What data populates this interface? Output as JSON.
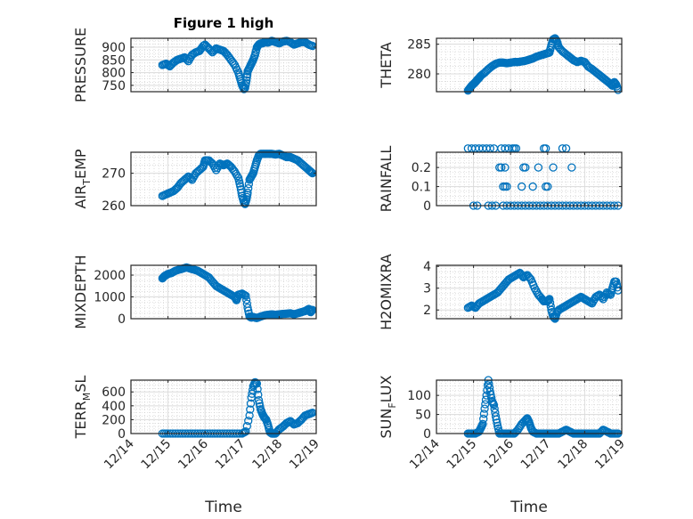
{
  "figure_title": "Figure 1 high",
  "colors": {
    "marker": "#0072bd",
    "axis": "#262626",
    "grid": "#dcdcdc"
  },
  "chart_data": [
    {
      "type": "scatter",
      "title": "Figure 1 high",
      "ylabel": "PRESSURE",
      "xlabel": "",
      "xlim": [
        0,
        5
      ],
      "ylim": [
        725,
        935
      ],
      "yticks": [
        750,
        800,
        850,
        900
      ],
      "ytick_labels": [
        "750",
        "800",
        "850",
        "900"
      ],
      "xticks": [
        0,
        1,
        2,
        3,
        4,
        5
      ],
      "xtick_labels": [],
      "x": [
        0.85,
        0.95,
        1.05,
        1.15,
        1.25,
        1.35,
        1.45,
        1.55,
        1.65,
        1.75,
        1.85,
        1.95,
        2.0,
        2.1,
        2.2,
        2.3,
        2.4,
        2.5,
        2.6,
        2.7,
        2.8,
        2.9,
        2.95,
        3.0,
        3.05,
        3.08,
        3.12,
        3.15,
        3.2,
        3.25,
        3.3,
        3.35,
        3.4,
        3.45,
        3.5,
        3.55,
        3.6,
        3.7,
        3.8,
        3.9,
        4.0,
        4.1,
        4.2,
        4.3,
        4.4,
        4.5,
        4.6,
        4.7,
        4.8,
        4.9
      ],
      "y": [
        830,
        835,
        825,
        840,
        850,
        855,
        860,
        845,
        870,
        880,
        885,
        905,
        910,
        895,
        880,
        895,
        890,
        885,
        870,
        850,
        830,
        800,
        775,
        750,
        735,
        740,
        770,
        805,
        820,
        835,
        850,
        870,
        900,
        910,
        915,
        915,
        920,
        918,
        925,
        920,
        915,
        922,
        925,
        920,
        910,
        915,
        920,
        920,
        910,
        905
      ]
    },
    {
      "type": "scatter",
      "title": "",
      "ylabel": "THETA",
      "xlabel": "",
      "xlim": [
        0,
        5
      ],
      "ylim": [
        277,
        286
      ],
      "yticks": [
        280,
        285
      ],
      "ytick_labels": [
        "280",
        "285"
      ],
      "xticks": [
        0,
        1,
        2,
        3,
        4,
        5
      ],
      "xtick_labels": [],
      "x": [
        0.85,
        0.9,
        0.95,
        1.0,
        1.05,
        1.1,
        1.15,
        1.2,
        1.3,
        1.4,
        1.5,
        1.6,
        1.7,
        1.8,
        1.9,
        2.0,
        2.1,
        2.2,
        2.3,
        2.4,
        2.5,
        2.6,
        2.7,
        2.8,
        2.9,
        3.0,
        3.05,
        3.1,
        3.15,
        3.2,
        3.25,
        3.3,
        3.4,
        3.5,
        3.6,
        3.7,
        3.8,
        3.9,
        4.0,
        4.1,
        4.2,
        4.3,
        4.4,
        4.5,
        4.6,
        4.7,
        4.75,
        4.8,
        4.85,
        4.9
      ],
      "y": [
        277.2,
        277.6,
        278.0,
        278.3,
        278.6,
        279.0,
        279.3,
        279.7,
        280.2,
        280.8,
        281.3,
        281.7,
        281.9,
        281.9,
        281.8,
        281.9,
        282.0,
        282.0,
        282.1,
        282.2,
        282.4,
        282.6,
        282.9,
        283.1,
        283.3,
        283.5,
        283.6,
        284.8,
        285.8,
        286.0,
        285.5,
        284.5,
        283.8,
        283.3,
        282.8,
        282.3,
        282.0,
        282.2,
        282.0,
        281.2,
        280.8,
        280.3,
        279.8,
        279.3,
        278.8,
        278.3,
        278.0,
        278.6,
        278.2,
        277.3
      ]
    },
    {
      "type": "scatter",
      "title": "",
      "ylabel": "AIR_TEMP",
      "xlabel": "",
      "xlim": [
        0,
        5
      ],
      "ylim": [
        260,
        276.5
      ],
      "yticks": [
        260,
        270
      ],
      "ytick_labels": [
        "260",
        "270"
      ],
      "xticks": [
        0,
        1,
        2,
        3,
        4,
        5
      ],
      "xtick_labels": [],
      "x": [
        0.85,
        0.95,
        1.05,
        1.15,
        1.25,
        1.35,
        1.45,
        1.55,
        1.65,
        1.75,
        1.85,
        1.95,
        2.0,
        2.1,
        2.2,
        2.3,
        2.4,
        2.5,
        2.6,
        2.7,
        2.8,
        2.9,
        2.95,
        3.0,
        3.05,
        3.08,
        3.12,
        3.15,
        3.2,
        3.25,
        3.3,
        3.35,
        3.4,
        3.45,
        3.5,
        3.6,
        3.7,
        3.8,
        3.9,
        4.0,
        4.1,
        4.2,
        4.3,
        4.4,
        4.5,
        4.6,
        4.7,
        4.8,
        4.85,
        4.9
      ],
      "y": [
        263,
        263.5,
        264,
        264.5,
        265.5,
        267,
        268,
        269,
        268,
        270,
        271,
        272,
        274,
        274,
        273,
        271,
        273,
        272.5,
        273,
        272,
        270.5,
        268.5,
        266,
        263,
        261,
        260.5,
        262,
        264,
        268,
        269,
        270,
        272,
        274,
        275.5,
        276,
        276,
        276,
        276,
        275.8,
        276,
        275.5,
        275,
        275,
        274.5,
        274,
        273,
        272,
        271,
        270.5,
        270
      ]
    },
    {
      "type": "scatter",
      "title": "",
      "ylabel": "RAINFALL",
      "xlabel": "",
      "xlim": [
        0,
        5
      ],
      "ylim": [
        0,
        0.28
      ],
      "yticks": [
        0,
        0.1,
        0.2
      ],
      "ytick_labels": [
        "0",
        "0.1",
        "0.2"
      ],
      "xticks": [
        0,
        1,
        2,
        3,
        4,
        5
      ],
      "xtick_labels": [],
      "x": [
        0.85,
        0.95,
        1.05,
        1.15,
        1.25,
        1.35,
        1.45,
        1.55,
        1.75,
        1.85,
        1.95,
        2.05,
        2.1,
        2.15,
        2.9,
        2.95,
        3.4,
        3.5,
        1.7,
        1.75,
        1.85,
        2.35,
        2.4,
        2.75,
        3.15,
        3.65,
        1.8,
        1.85,
        1.9,
        2.3,
        2.6,
        2.95,
        3.0,
        1.0,
        1.1,
        1.4,
        1.5,
        1.6,
        1.8,
        1.9,
        2.0,
        2.1,
        2.2,
        2.3,
        2.4,
        2.5,
        2.6,
        2.7,
        2.8,
        2.9,
        3.0,
        3.1,
        3.2,
        3.3,
        3.4,
        3.5,
        3.6,
        3.7,
        3.8,
        3.9,
        4.0,
        4.1,
        4.2,
        4.3,
        4.4,
        4.5,
        4.6,
        4.7,
        4.8,
        4.9
      ],
      "y": [
        0.3,
        0.3,
        0.3,
        0.3,
        0.3,
        0.3,
        0.3,
        0.3,
        0.3,
        0.3,
        0.3,
        0.3,
        0.3,
        0.3,
        0.3,
        0.3,
        0.3,
        0.3,
        0.2,
        0.2,
        0.2,
        0.2,
        0.2,
        0.2,
        0.2,
        0.2,
        0.1,
        0.1,
        0.1,
        0.1,
        0.1,
        0.1,
        0.1,
        0,
        0,
        0,
        0,
        0,
        0,
        0,
        0,
        0,
        0,
        0,
        0,
        0,
        0,
        0,
        0,
        0,
        0,
        0,
        0,
        0,
        0,
        0,
        0,
        0,
        0,
        0,
        0,
        0,
        0,
        0,
        0,
        0,
        0,
        0,
        0,
        0
      ]
    },
    {
      "type": "scatter",
      "title": "",
      "ylabel": "MIXDEPTH",
      "xlabel": "",
      "xlim": [
        0,
        5
      ],
      "ylim": [
        0,
        2450
      ],
      "yticks": [
        0,
        1000,
        2000
      ],
      "ytick_labels": [
        "0",
        "1000",
        "2000"
      ],
      "xticks": [
        0,
        1,
        2,
        3,
        4,
        5
      ],
      "xtick_labels": [],
      "x": [
        0.85,
        0.9,
        0.95,
        1.0,
        1.1,
        1.2,
        1.3,
        1.4,
        1.5,
        1.6,
        1.7,
        1.8,
        1.9,
        2.0,
        2.1,
        2.2,
        2.3,
        2.4,
        2.5,
        2.6,
        2.7,
        2.8,
        2.85,
        2.9,
        3.0,
        3.1,
        3.15,
        3.2,
        3.25,
        3.3,
        3.35,
        3.4,
        3.5,
        3.6,
        3.7,
        3.8,
        3.9,
        4.0,
        4.1,
        4.2,
        4.3,
        4.4,
        4.5,
        4.6,
        4.7,
        4.8,
        4.85,
        4.9
      ],
      "y": [
        1850,
        1950,
        2000,
        2050,
        2100,
        2200,
        2250,
        2300,
        2350,
        2300,
        2250,
        2200,
        2100,
        2000,
        1900,
        1700,
        1500,
        1400,
        1300,
        1200,
        1100,
        1000,
        850,
        1100,
        1150,
        1050,
        500,
        100,
        50,
        80,
        50,
        30,
        100,
        150,
        180,
        200,
        180,
        200,
        220,
        230,
        250,
        200,
        250,
        300,
        350,
        450,
        300,
        400
      ]
    },
    {
      "type": "scatter",
      "title": "",
      "ylabel": "H2OMIXRA",
      "xlabel": "",
      "xlim": [
        0,
        5
      ],
      "ylim": [
        1.6,
        4.05
      ],
      "yticks": [
        2,
        3,
        4
      ],
      "ytick_labels": [
        "2",
        "3",
        "4"
      ],
      "xticks": [
        0,
        1,
        2,
        3,
        4,
        5
      ],
      "xtick_labels": [],
      "x": [
        0.85,
        0.95,
        1.05,
        1.15,
        1.25,
        1.35,
        1.45,
        1.55,
        1.65,
        1.75,
        1.85,
        1.95,
        2.05,
        2.15,
        2.25,
        2.35,
        2.45,
        2.55,
        2.65,
        2.75,
        2.85,
        2.9,
        3.0,
        3.05,
        3.1,
        3.15,
        3.2,
        3.25,
        3.3,
        3.4,
        3.5,
        3.6,
        3.7,
        3.8,
        3.9,
        4.0,
        4.1,
        4.2,
        4.3,
        4.4,
        4.5,
        4.6,
        4.7,
        4.75,
        4.8,
        4.85,
        4.9
      ],
      "y": [
        2.1,
        2.2,
        2.1,
        2.3,
        2.4,
        2.5,
        2.6,
        2.7,
        2.8,
        3.0,
        3.2,
        3.4,
        3.5,
        3.6,
        3.7,
        3.5,
        3.6,
        3.4,
        3.0,
        2.7,
        2.5,
        2.4,
        2.4,
        2.5,
        2.0,
        1.7,
        1.6,
        1.9,
        2.0,
        2.1,
        2.2,
        2.3,
        2.4,
        2.5,
        2.6,
        2.5,
        2.4,
        2.3,
        2.6,
        2.7,
        2.5,
        2.8,
        2.7,
        3.0,
        3.3,
        3.3,
        2.9
      ]
    },
    {
      "type": "scatter",
      "title": "",
      "ylabel": "TERR_MSL",
      "xlabel": "Time",
      "xlim": [
        0,
        5
      ],
      "ylim": [
        0,
        770
      ],
      "yticks": [
        0,
        200,
        400,
        600
      ],
      "ytick_labels": [
        "0",
        "200",
        "400",
        "600"
      ],
      "xticks": [
        0,
        1,
        2,
        3,
        4,
        5
      ],
      "xtick_labels": [
        "12/14",
        "12/15",
        "12/16",
        "12/17",
        "12/18",
        "12/19"
      ],
      "x": [
        0.85,
        1.0,
        1.2,
        1.4,
        1.6,
        1.8,
        2.0,
        2.2,
        2.4,
        2.6,
        2.8,
        3.0,
        3.1,
        3.2,
        3.25,
        3.3,
        3.35,
        3.4,
        3.45,
        3.5,
        3.55,
        3.6,
        3.65,
        3.7,
        3.75,
        3.8,
        3.85,
        3.9,
        4.0,
        4.1,
        4.2,
        4.3,
        4.4,
        4.5,
        4.6,
        4.7,
        4.8,
        4.9
      ],
      "y": [
        0,
        0,
        0,
        0,
        0,
        0,
        0,
        0,
        0,
        0,
        0,
        0,
        30,
        260,
        520,
        680,
        740,
        720,
        480,
        350,
        280,
        230,
        200,
        120,
        20,
        0,
        0,
        0,
        60,
        100,
        150,
        180,
        130,
        150,
        200,
        260,
        280,
        300
      ]
    },
    {
      "type": "scatter",
      "title": "",
      "ylabel": "SUN_FLUX",
      "xlabel": "Time",
      "xlim": [
        0,
        5
      ],
      "ylim": [
        0,
        140
      ],
      "yticks": [
        0,
        50,
        100
      ],
      "ytick_labels": [
        "0",
        "50",
        "100"
      ],
      "xticks": [
        0,
        1,
        2,
        3,
        4,
        5
      ],
      "xtick_labels": [
        "12/14",
        "12/15",
        "12/16",
        "12/17",
        "12/18",
        "12/19"
      ],
      "x": [
        0.85,
        0.95,
        1.05,
        1.15,
        1.2,
        1.25,
        1.3,
        1.35,
        1.4,
        1.45,
        1.5,
        1.55,
        1.6,
        1.65,
        1.7,
        1.8,
        1.9,
        2.0,
        2.1,
        2.2,
        2.3,
        2.4,
        2.45,
        2.5,
        2.55,
        2.6,
        2.7,
        2.8,
        2.9,
        3.0,
        3.1,
        3.2,
        3.3,
        3.4,
        3.5,
        3.6,
        3.7,
        3.8,
        3.9,
        4.0,
        4.1,
        4.2,
        4.3,
        4.4,
        4.5,
        4.6,
        4.7,
        4.8,
        4.9
      ],
      "y": [
        0,
        0,
        0,
        5,
        15,
        25,
        65,
        100,
        140,
        110,
        85,
        75,
        45,
        20,
        0,
        0,
        0,
        0,
        0,
        10,
        25,
        35,
        40,
        30,
        15,
        5,
        0,
        0,
        0,
        0,
        0,
        0,
        0,
        5,
        10,
        5,
        0,
        0,
        0,
        0,
        0,
        0,
        0,
        0,
        10,
        5,
        0,
        0,
        0
      ]
    }
  ]
}
